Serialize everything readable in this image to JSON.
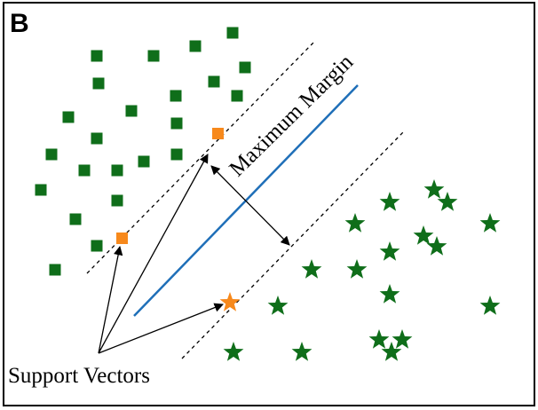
{
  "panel_label": "B",
  "labels": {
    "maximum_margin": "Maximum Margin",
    "support_vectors": "Support Vectors"
  },
  "colors": {
    "class_a": "#0f6e1a",
    "class_b": "#0f6e1a",
    "support_vector": "#f7891c",
    "hyperplane": "#1f6fb8",
    "margin_line": "#000000"
  },
  "classes": {
    "class_a_marker": "square",
    "class_b_marker": "star"
  }
}
